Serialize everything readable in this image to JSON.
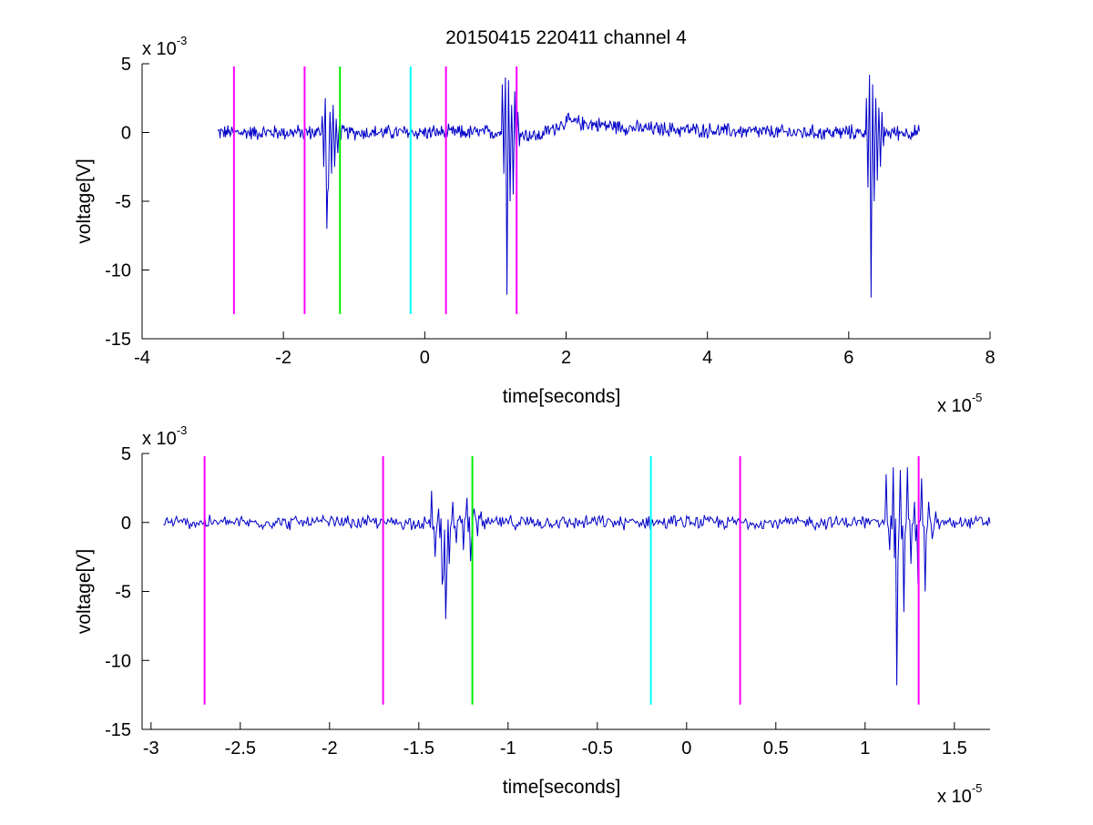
{
  "chart_data": [
    {
      "type": "line",
      "title": "20150415 220411 channel 4",
      "xlabel": "time[seconds]",
      "ylabel": "voltage[V]",
      "x_multiplier": "x 10",
      "x_exponent": "-5",
      "y_multiplier": "x 10",
      "y_exponent": "-3",
      "xlim": [
        -4,
        8
      ],
      "ylim": [
        -15,
        5
      ],
      "xticks": [
        "-4",
        "-2",
        "0",
        "2",
        "4",
        "6",
        "8"
      ],
      "yticks": [
        "5",
        "0",
        "-5",
        "-10",
        "-15"
      ],
      "xtick_values": [
        -4,
        -2,
        0,
        2,
        4,
        6,
        8
      ],
      "ytick_values": [
        5,
        0,
        -5,
        -10,
        -15
      ],
      "grid": false,
      "series": [
        {
          "color": "#0000c8",
          "x_range": [
            -2.93,
            7.0
          ],
          "baseline_segments": [
            [
              -2.93,
              0.0
            ],
            [
              1.3,
              0.0
            ],
            [
              1.6,
              -0.3
            ],
            [
              2.0,
              0.8
            ],
            [
              3.0,
              0.3
            ],
            [
              5.0,
              0.0
            ],
            [
              7.0,
              0.0
            ]
          ],
          "noise_amplitude": 0.45,
          "bursts": [
            {
              "x": -1.45,
              "values": [
                1.2,
                -2.5,
                2.5,
                -7.0,
                -4.0,
                1.5,
                -3.0,
                2.0,
                -2.5,
                1.0,
                -1.5,
                0.5
              ]
            },
            {
              "x": 1.1,
              "values": [
                3.5,
                -3.0,
                4.0,
                -11.8,
                3.8,
                -5.0,
                2.0,
                -4.5,
                3.0,
                -2.0,
                1.5,
                -1.0
              ]
            },
            {
              "x": 6.25,
              "values": [
                2.5,
                -4.0,
                4.2,
                -12.0,
                3.5,
                -5.0,
                2.5,
                -3.5,
                1.8,
                -2.5,
                1.5,
                -1.0
              ]
            }
          ]
        }
      ],
      "markers": [
        {
          "x": -2.7,
          "color": "#ff00ff",
          "y_range": [
            -13.2,
            4.8
          ]
        },
        {
          "x": -1.7,
          "color": "#ff00ff",
          "y_range": [
            -13.2,
            4.8
          ]
        },
        {
          "x": -1.2,
          "color": "#00ee00",
          "y_range": [
            -13.2,
            4.8
          ]
        },
        {
          "x": -0.2,
          "color": "#00ffff",
          "y_range": [
            -13.2,
            4.8
          ]
        },
        {
          "x": 0.3,
          "color": "#ff00ff",
          "y_range": [
            -13.2,
            4.8
          ]
        },
        {
          "x": 1.3,
          "color": "#ff00ff",
          "y_range": [
            -13.2,
            4.8
          ]
        }
      ]
    },
    {
      "type": "line",
      "title": "",
      "xlabel": "time[seconds]",
      "ylabel": "voltage[V]",
      "x_multiplier": "x 10",
      "x_exponent": "-5",
      "y_multiplier": "x 10",
      "y_exponent": "-3",
      "xlim": [
        -3.05,
        1.7
      ],
      "ylim": [
        -15,
        5
      ],
      "xticks": [
        "-3",
        "-2.5",
        "-2",
        "-1.5",
        "-1",
        "-0.5",
        "0",
        "0.5",
        "1",
        "1.5"
      ],
      "yticks": [
        "5",
        "0",
        "-5",
        "-10",
        "-15"
      ],
      "xtick_values": [
        -3,
        -2.5,
        -2,
        -1.5,
        -1,
        -0.5,
        0,
        0.5,
        1,
        1.5
      ],
      "ytick_values": [
        5,
        0,
        -5,
        -10,
        -15
      ],
      "grid": false,
      "series": [
        {
          "color": "#0000c8",
          "x_range": [
            -2.93,
            1.7
          ],
          "baseline_segments": [
            [
              -2.93,
              0.0
            ],
            [
              1.7,
              0.0
            ]
          ],
          "noise_amplitude": 0.4,
          "bursts": [
            {
              "x": -1.43,
              "values": [
                2.3,
                -2.5,
                1.0,
                -4.5,
                -7.0,
                -3.0,
                1.5,
                -1.5,
                0.5,
                -2.0,
                1.8,
                -2.8,
                1.0,
                -1.0,
                0.8,
                -0.5
              ]
            },
            {
              "x": 1.12,
              "values": [
                3.5,
                -2.0,
                4.0,
                -11.8,
                3.8,
                -6.5,
                4.0,
                -3.0,
                1.5,
                -4.5,
                3.2,
                -5.0,
                1.5,
                -1.2,
                0.8,
                -0.5
              ]
            }
          ]
        }
      ],
      "markers": [
        {
          "x": -2.7,
          "color": "#ff00ff",
          "y_range": [
            -13.2,
            4.8
          ]
        },
        {
          "x": -1.7,
          "color": "#ff00ff",
          "y_range": [
            -13.2,
            4.8
          ]
        },
        {
          "x": -1.2,
          "color": "#00ee00",
          "y_range": [
            -13.2,
            4.8
          ]
        },
        {
          "x": -0.2,
          "color": "#00ffff",
          "y_range": [
            -13.2,
            4.8
          ]
        },
        {
          "x": 0.3,
          "color": "#ff00ff",
          "y_range": [
            -13.2,
            4.8
          ]
        },
        {
          "x": 1.3,
          "color": "#ff00ff",
          "y_range": [
            -13.2,
            4.8
          ]
        }
      ]
    }
  ]
}
